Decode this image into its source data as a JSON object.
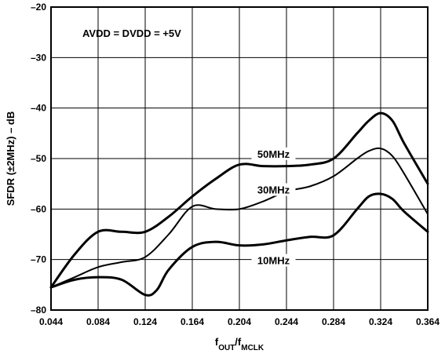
{
  "chart_data": {
    "type": "line",
    "title": "",
    "xlabel": "f_OUT/f_MCLK",
    "xlabel_main": "f",
    "xlabel_sub1": "OUT",
    "xlabel_mid": "/f",
    "xlabel_sub2": "MCLK",
    "ylabel": "SFDR (±2MHz) – dB",
    "xlim": [
      0.044,
      0.364
    ],
    "ylim": [
      -80,
      -20
    ],
    "xticks": [
      "0.044",
      "0.084",
      "0.124",
      "0.164",
      "0.204",
      "0.244",
      "0.284",
      "0.324",
      "0.364"
    ],
    "yticks": [
      "–20",
      "–30",
      "–40",
      "–50",
      "–60",
      "–70",
      "–80"
    ],
    "grid": true,
    "annotation": "AVDD = DVDD = +5V",
    "series": [
      {
        "name": "50MHz",
        "stroke_width": 3,
        "x": [
          0.044,
          0.064,
          0.084,
          0.104,
          0.124,
          0.144,
          0.164,
          0.184,
          0.204,
          0.224,
          0.244,
          0.264,
          0.284,
          0.304,
          0.314,
          0.324,
          0.334,
          0.344,
          0.364
        ],
        "y": [
          -75.5,
          -69,
          -64.5,
          -64.5,
          -64.5,
          -61.5,
          -57.5,
          -54,
          -51.2,
          -51.5,
          -51.5,
          -51.2,
          -50,
          -45,
          -42.5,
          -41,
          -42.5,
          -47,
          -55
        ]
      },
      {
        "name": "30MHz",
        "stroke_width": 2,
        "x": [
          0.044,
          0.064,
          0.084,
          0.104,
          0.124,
          0.144,
          0.164,
          0.184,
          0.204,
          0.224,
          0.244,
          0.264,
          0.284,
          0.304,
          0.314,
          0.324,
          0.334,
          0.344,
          0.364
        ],
        "y": [
          -75.5,
          -73.5,
          -71.5,
          -70.5,
          -69.5,
          -65,
          -59.5,
          -60,
          -60,
          -58.5,
          -56.5,
          -55.5,
          -53.5,
          -50,
          -48.5,
          -48,
          -49.5,
          -53,
          -61
        ]
      },
      {
        "name": "10MHz",
        "stroke_width": 3,
        "x": [
          0.044,
          0.064,
          0.084,
          0.104,
          0.124,
          0.134,
          0.144,
          0.164,
          0.184,
          0.204,
          0.224,
          0.244,
          0.264,
          0.284,
          0.304,
          0.314,
          0.324,
          0.334,
          0.344,
          0.364
        ],
        "y": [
          -75.5,
          -74,
          -73.5,
          -74,
          -77,
          -76,
          -72,
          -67.5,
          -66.5,
          -67.2,
          -67,
          -66.2,
          -65.5,
          -65.2,
          -60,
          -57.5,
          -57,
          -58,
          -60.5,
          -64.5
        ]
      }
    ],
    "series_labels": [
      {
        "text": "50MHz",
        "x": 0.233,
        "y": -49.2
      },
      {
        "text": "30MHz",
        "x": 0.233,
        "y": -56.3
      },
      {
        "text": "10MHz",
        "x": 0.233,
        "y": -70.3
      }
    ]
  }
}
